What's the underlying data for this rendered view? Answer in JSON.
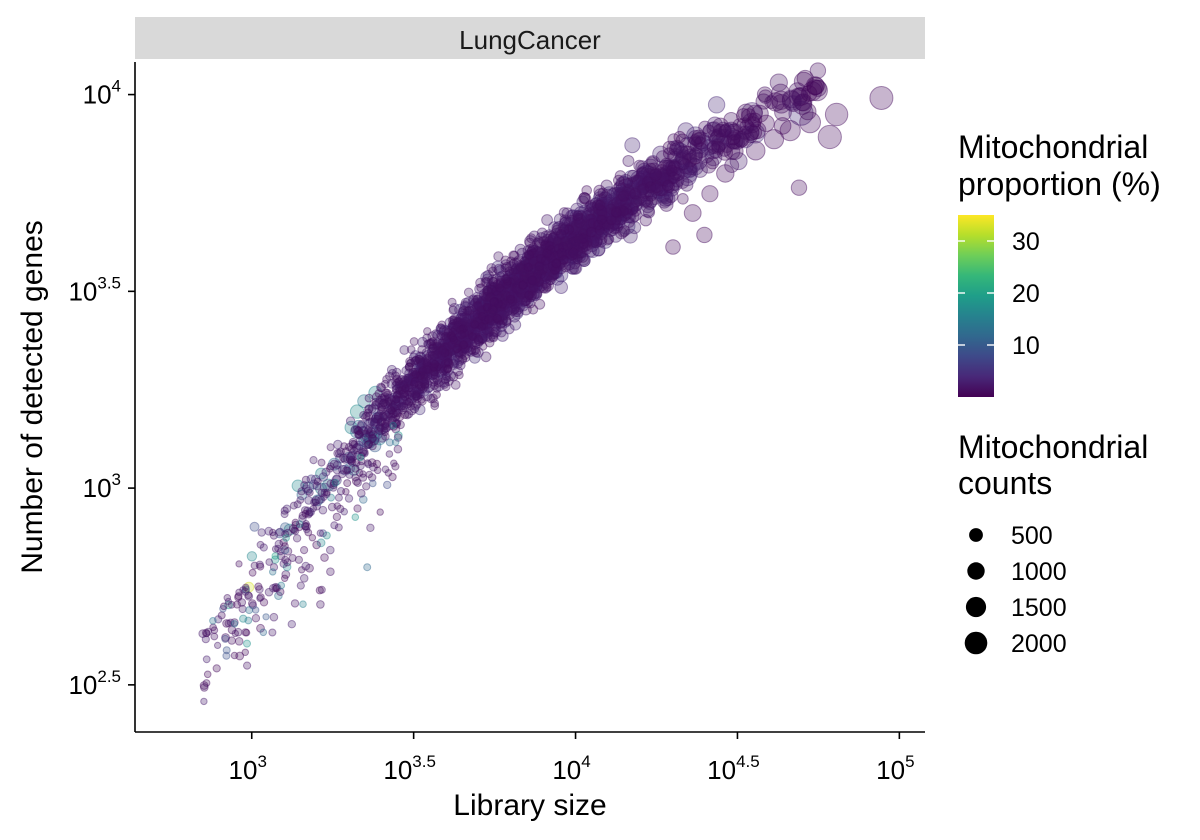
{
  "chart_data": {
    "type": "scatter",
    "facet": "LungCancer",
    "xlabel": "Library size",
    "ylabel": "Number of detected genes",
    "x_scale": "log10",
    "y_scale": "log10",
    "xlim": [
      436,
      120000
    ],
    "ylim": [
      240,
      12100
    ],
    "x_ticks": [
      {
        "value": 1000,
        "base": "10",
        "exp": "3"
      },
      {
        "value": 3162.28,
        "base": "10",
        "exp": "3.5"
      },
      {
        "value": 10000,
        "base": "10",
        "exp": "4"
      },
      {
        "value": 31622.78,
        "base": "10",
        "exp": "4.5"
      },
      {
        "value": 100000,
        "base": "10",
        "exp": "5"
      }
    ],
    "y_ticks": [
      {
        "value": 316.23,
        "base": "10",
        "exp": "2.5"
      },
      {
        "value": 1000,
        "base": "10",
        "exp": "3"
      },
      {
        "value": 3162.28,
        "base": "10",
        "exp": "3.5"
      },
      {
        "value": 10000,
        "base": "10",
        "exp": "4"
      }
    ],
    "grid": false,
    "legend_position": "right",
    "color_legend": {
      "title": [
        "Mitochondrial",
        "proportion (%)"
      ],
      "labels": [
        "30",
        "20",
        "10"
      ],
      "label_values": [
        30,
        20,
        10
      ],
      "range": [
        0,
        35
      ],
      "palette": [
        "#440154",
        "#482878",
        "#3e4989",
        "#31688e",
        "#26828e",
        "#1f9e89",
        "#35b779",
        "#6ece58",
        "#b5de2b",
        "#fde725"
      ]
    },
    "size_legend": {
      "title": [
        "Mitochondrial",
        "counts"
      ],
      "labels": [
        "500",
        "1000",
        "1500",
        "2000"
      ],
      "values": [
        500,
        1000,
        1500,
        2000
      ]
    },
    "highlights": [
      {
        "x": 88000,
        "y": 9800,
        "mito_pct": 1,
        "mito_counts": 2100
      },
      {
        "x": 64000,
        "y": 8900,
        "mito_pct": 1,
        "mito_counts": 1950
      },
      {
        "x": 61000,
        "y": 7800,
        "mito_pct": 1,
        "mito_counts": 2150
      },
      {
        "x": 53000,
        "y": 8500,
        "mito_pct": 1,
        "mito_counts": 1600
      },
      {
        "x": 46000,
        "y": 8100,
        "mito_pct": 1,
        "mito_counts": 1500
      },
      {
        "x": 41000,
        "y": 7700,
        "mito_pct": 1,
        "mito_counts": 1300
      },
      {
        "x": 36000,
        "y": 7200,
        "mito_pct": 1,
        "mito_counts": 1200
      },
      {
        "x": 29000,
        "y": 6300,
        "mito_pct": 1,
        "mito_counts": 1000
      },
      {
        "x": 26000,
        "y": 5600,
        "mito_pct": 1,
        "mito_counts": 800
      },
      {
        "x": 23000,
        "y": 5000,
        "mito_pct": 1,
        "mito_counts": 900
      },
      {
        "x": 49000,
        "y": 5800,
        "mito_pct": 1,
        "mito_counts": 700
      },
      {
        "x": 25000,
        "y": 4400,
        "mito_pct": 1,
        "mito_counts": 700
      },
      {
        "x": 20000,
        "y": 4100,
        "mito_pct": 1,
        "mito_counts": 600
      },
      {
        "x": 1580,
        "y": 930,
        "mito_pct": 2,
        "mito_counts": 60
      },
      {
        "x": 980,
        "y": 560,
        "mito_pct": 33,
        "mito_counts": 150
      },
      {
        "x": 2400,
        "y": 1280,
        "mito_pct": 10,
        "mito_counts": 300
      },
      {
        "x": 1800,
        "y": 1150,
        "mito_pct": 12,
        "mito_counts": 300
      }
    ]
  }
}
